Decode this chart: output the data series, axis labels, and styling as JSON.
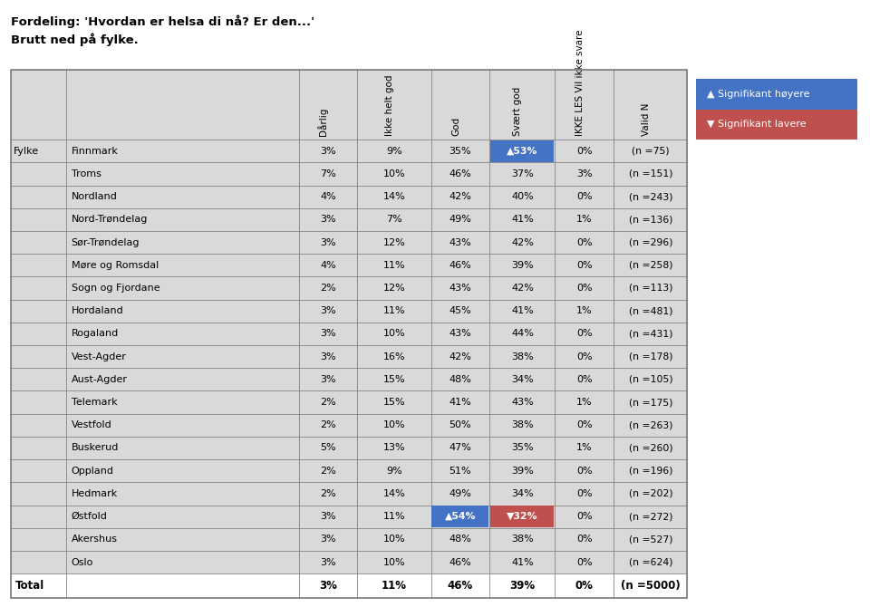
{
  "title_line1": "Fordeling: 'Hvordan er helsa di nå? Er den...'",
  "title_line2": "Brutt ned på fylke.",
  "rows": [
    {
      "name": "Finnmark",
      "vals": [
        "3%",
        "9%",
        "35%",
        "53%",
        "0%"
      ],
      "n": "(n =75)",
      "up": [
        3
      ],
      "down": []
    },
    {
      "name": "Troms",
      "vals": [
        "7%",
        "10%",
        "46%",
        "37%",
        "3%"
      ],
      "n": "(n =151)",
      "up": [],
      "down": []
    },
    {
      "name": "Nordland",
      "vals": [
        "4%",
        "14%",
        "42%",
        "40%",
        "0%"
      ],
      "n": "(n =243)",
      "up": [],
      "down": []
    },
    {
      "name": "Nord-Trøndelag",
      "vals": [
        "3%",
        "7%",
        "49%",
        "41%",
        "1%"
      ],
      "n": "(n =136)",
      "up": [],
      "down": []
    },
    {
      "name": "Sør-Trøndelag",
      "vals": [
        "3%",
        "12%",
        "43%",
        "42%",
        "0%"
      ],
      "n": "(n =296)",
      "up": [],
      "down": []
    },
    {
      "name": "Møre og Romsdal",
      "vals": [
        "4%",
        "11%",
        "46%",
        "39%",
        "0%"
      ],
      "n": "(n =258)",
      "up": [],
      "down": []
    },
    {
      "name": "Sogn og Fjordane",
      "vals": [
        "2%",
        "12%",
        "43%",
        "42%",
        "0%"
      ],
      "n": "(n =113)",
      "up": [],
      "down": []
    },
    {
      "name": "Hordaland",
      "vals": [
        "3%",
        "11%",
        "45%",
        "41%",
        "1%"
      ],
      "n": "(n =481)",
      "up": [],
      "down": []
    },
    {
      "name": "Rogaland",
      "vals": [
        "3%",
        "10%",
        "43%",
        "44%",
        "0%"
      ],
      "n": "(n =431)",
      "up": [],
      "down": []
    },
    {
      "name": "Vest-Agder",
      "vals": [
        "3%",
        "16%",
        "42%",
        "38%",
        "0%"
      ],
      "n": "(n =178)",
      "up": [],
      "down": []
    },
    {
      "name": "Aust-Agder",
      "vals": [
        "3%",
        "15%",
        "48%",
        "34%",
        "0%"
      ],
      "n": "(n =105)",
      "up": [],
      "down": []
    },
    {
      "name": "Telemark",
      "vals": [
        "2%",
        "15%",
        "41%",
        "43%",
        "1%"
      ],
      "n": "(n =175)",
      "up": [],
      "down": []
    },
    {
      "name": "Vestfold",
      "vals": [
        "2%",
        "10%",
        "50%",
        "38%",
        "0%"
      ],
      "n": "(n =263)",
      "up": [],
      "down": []
    },
    {
      "name": "Buskerud",
      "vals": [
        "5%",
        "13%",
        "47%",
        "35%",
        "1%"
      ],
      "n": "(n =260)",
      "up": [],
      "down": []
    },
    {
      "name": "Oppland",
      "vals": [
        "2%",
        "9%",
        "51%",
        "39%",
        "0%"
      ],
      "n": "(n =196)",
      "up": [],
      "down": []
    },
    {
      "name": "Hedmark",
      "vals": [
        "2%",
        "14%",
        "49%",
        "34%",
        "0%"
      ],
      "n": "(n =202)",
      "up": [],
      "down": []
    },
    {
      "name": "Østfold",
      "vals": [
        "3%",
        "11%",
        "54%",
        "32%",
        "0%"
      ],
      "n": "(n =272)",
      "up": [
        2
      ],
      "down": [
        3
      ]
    },
    {
      "name": "Akershus",
      "vals": [
        "3%",
        "10%",
        "48%",
        "38%",
        "0%"
      ],
      "n": "(n =527)",
      "up": [],
      "down": []
    },
    {
      "name": "Oslo",
      "vals": [
        "3%",
        "10%",
        "46%",
        "41%",
        "0%"
      ],
      "n": "(n =624)",
      "up": [],
      "down": []
    }
  ],
  "total_vals": [
    "3%",
    "11%",
    "46%",
    "39%",
    "0%"
  ],
  "total_n": "(n =5000)",
  "col_headers": [
    "Dårlig",
    "Ikke helt god",
    "God",
    "Svært god",
    "IKKE LES Vil ikke svare",
    "Valid N"
  ],
  "highlight_up_color": "#4472C4",
  "highlight_down_color": "#C0504D",
  "highlight_text_color": "#FFFFFF",
  "table_bg": "#D9D9D9",
  "total_bg": "#FFFFFF",
  "border_color": "#7F7F7F",
  "legend_up_color": "#4472C4",
  "legend_down_color": "#C0504D",
  "legend_up_text": "Signifikant høyere",
  "legend_down_text": "Signifikant lavere"
}
